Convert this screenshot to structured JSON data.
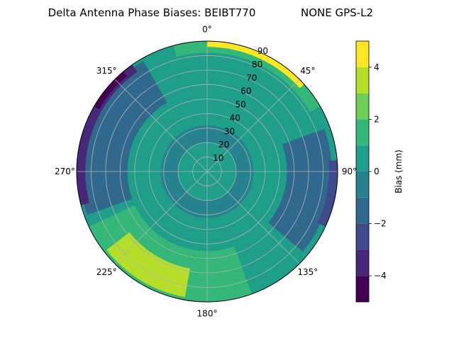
{
  "chart_data": {
    "type": "polar-contour",
    "title_left": "Delta Antenna Phase Biases: BEIBT770",
    "title_right": "NONE GPS-L2",
    "azimuth_labels": [
      {
        "deg": 0,
        "text": "0°"
      },
      {
        "deg": 45,
        "text": "45°"
      },
      {
        "deg": 90,
        "text": "90°"
      },
      {
        "deg": 135,
        "text": "135°"
      },
      {
        "deg": 180,
        "text": "180°"
      },
      {
        "deg": 225,
        "text": "225°"
      },
      {
        "deg": 270,
        "text": "270°"
      },
      {
        "deg": 315,
        "text": "315°"
      }
    ],
    "radial_ticks": [
      10,
      20,
      30,
      40,
      50,
      60,
      70,
      80,
      90
    ],
    "radial_max": 90,
    "grid": true,
    "colorbar": {
      "label": "Bias (mm)",
      "range": [
        -5,
        5
      ],
      "ticks": [
        -4,
        -2,
        0,
        2,
        4
      ],
      "levels": [
        {
          "lo": -5,
          "hi": -4,
          "color": "#440154"
        },
        {
          "lo": -4,
          "hi": -3,
          "color": "#482878"
        },
        {
          "lo": -3,
          "hi": -2,
          "color": "#3e4a89"
        },
        {
          "lo": -2,
          "hi": -1,
          "color": "#31688e"
        },
        {
          "lo": -1,
          "hi": 0,
          "color": "#26828e"
        },
        {
          "lo": 0,
          "hi": 1,
          "color": "#1f9e89"
        },
        {
          "lo": 1,
          "hi": 2,
          "color": "#35b779"
        },
        {
          "lo": 2,
          "hi": 3,
          "color": "#6ece58"
        },
        {
          "lo": 3,
          "hi": 4,
          "color": "#b5de2b"
        },
        {
          "lo": 4,
          "hi": 5,
          "color": "#fde725"
        }
      ]
    },
    "background_level_mm": 0.5,
    "regions": [
      {
        "name": "mid-ring",
        "level": -0.5,
        "r": [
          20,
          32
        ],
        "az": [
          0,
          360
        ]
      },
      {
        "name": "north",
        "level": 0.5,
        "r": [
          40,
          82
        ],
        "az": [
          335,
          25
        ]
      },
      {
        "name": "north-edge",
        "level": 1.5,
        "r": [
          82,
          90
        ],
        "az": [
          345,
          60
        ]
      },
      {
        "name": "north-edge-high",
        "level": 4.5,
        "r": [
          86,
          90
        ],
        "az": [
          0,
          48
        ]
      },
      {
        "name": "east",
        "level": -1.5,
        "r": [
          55,
          86
        ],
        "az": [
          70,
          130
        ]
      },
      {
        "name": "east-edge",
        "level": -2.5,
        "r": [
          84,
          90
        ],
        "az": [
          85,
          115
        ]
      },
      {
        "name": "south",
        "level": 1.5,
        "r": [
          55,
          90
        ],
        "az": [
          160,
          245
        ]
      },
      {
        "name": "south-high",
        "level": 3.5,
        "r": [
          68,
          88
        ],
        "az": [
          190,
          232
        ]
      },
      {
        "name": "west",
        "level": -1.5,
        "r": [
          55,
          88
        ],
        "az": [
          250,
          330
        ]
      },
      {
        "name": "west-edge",
        "level": -3.5,
        "r": [
          84,
          90
        ],
        "az": [
          255,
          325
        ]
      },
      {
        "name": "north-west",
        "level": -4.5,
        "r": [
          86,
          90
        ],
        "az": [
          300,
          320
        ]
      }
    ]
  }
}
